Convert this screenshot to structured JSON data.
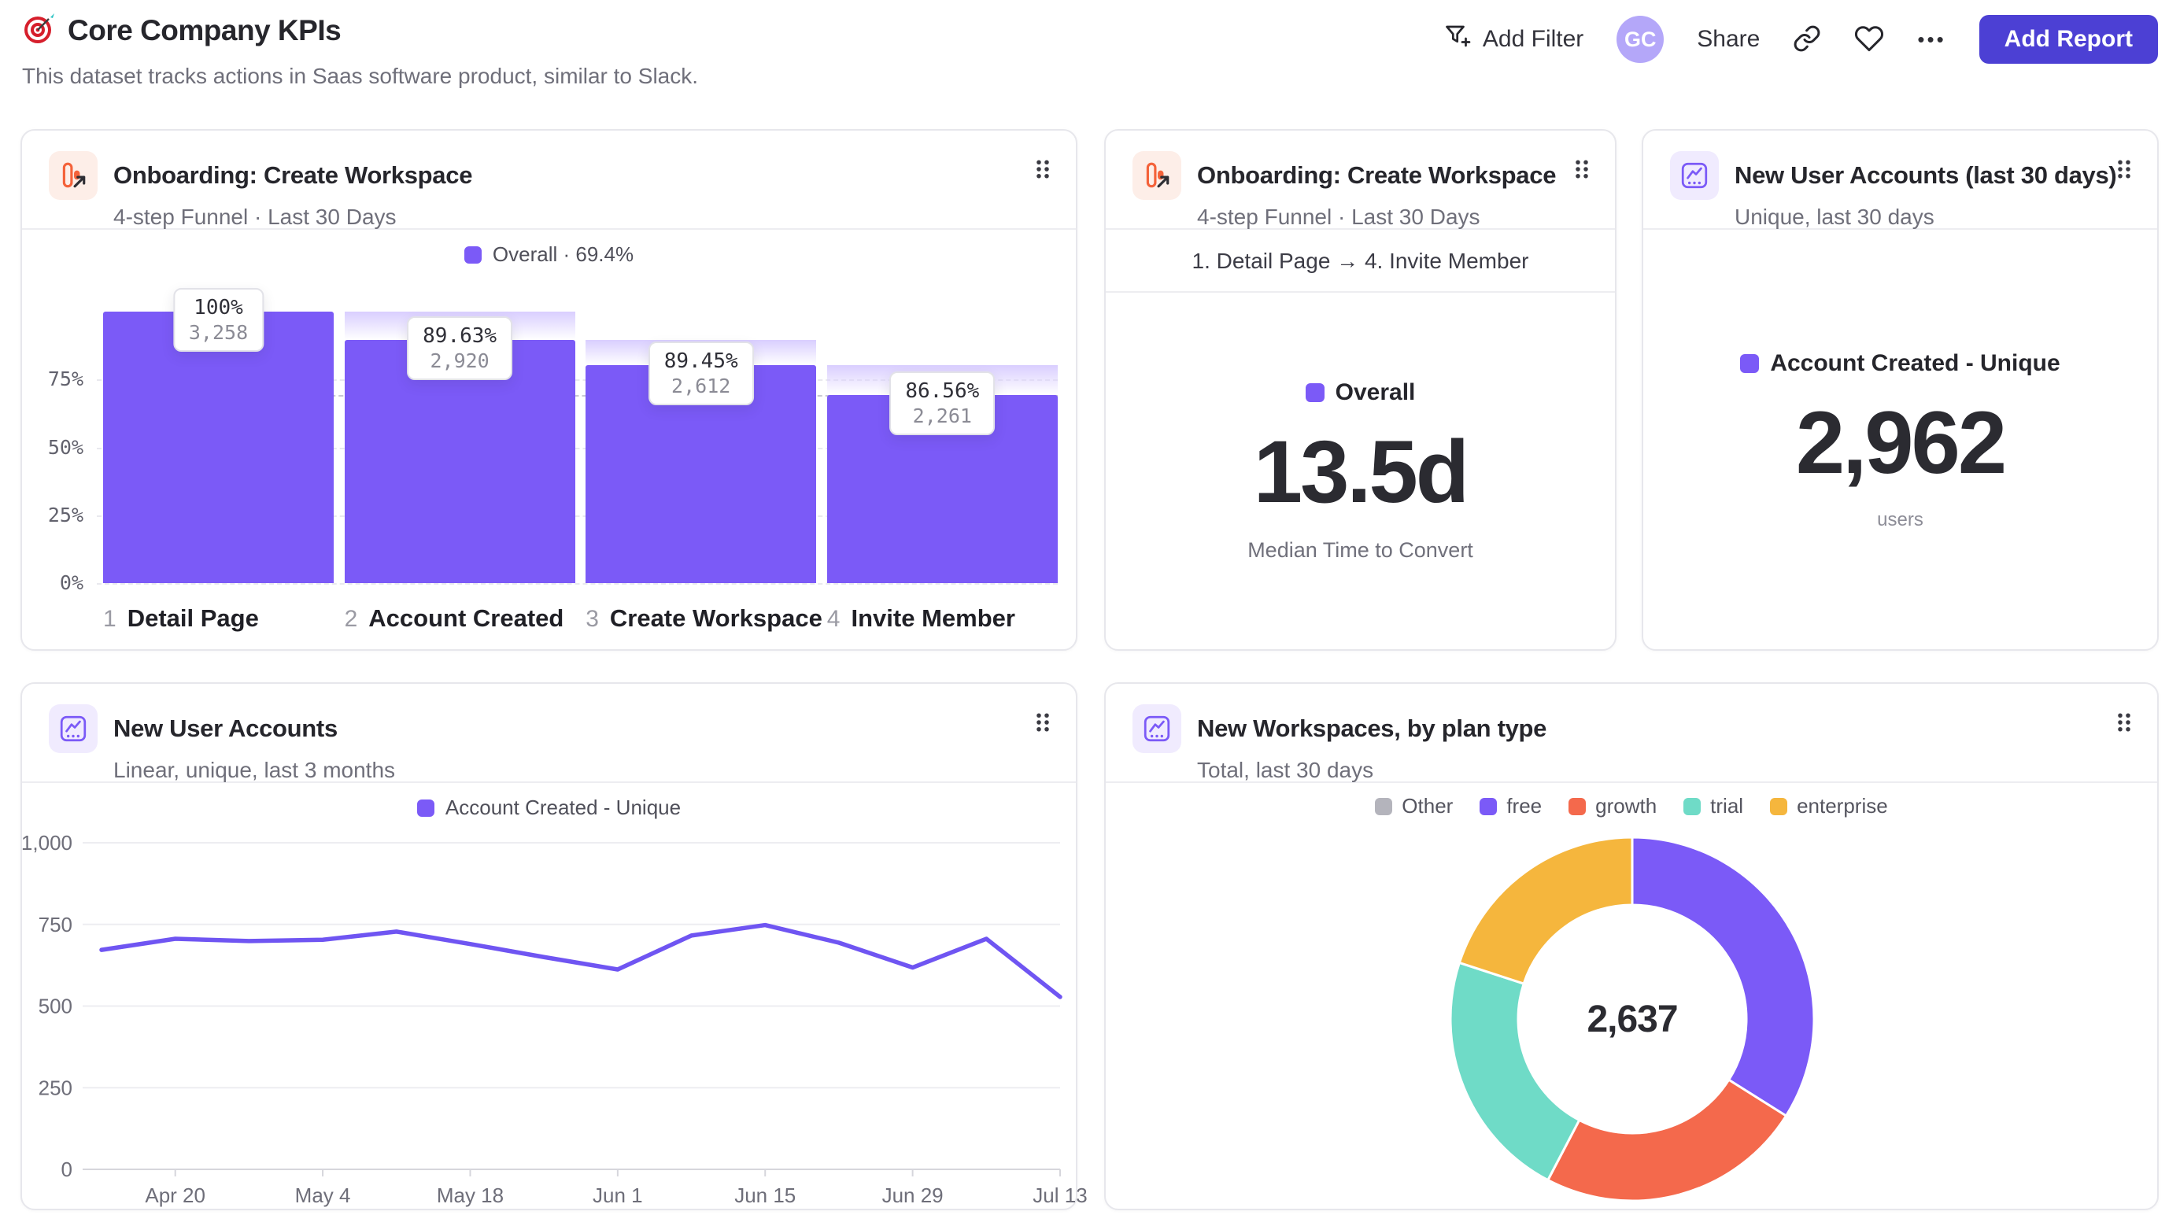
{
  "header": {
    "title": "Core Company KPIs",
    "subtitle": "This dataset tracks actions in Saas software product, similar to Slack.",
    "actions": {
      "add_filter": "Add Filter",
      "avatar_initials": "GC",
      "share": "Share",
      "more": "•••",
      "add_report": "Add Report"
    },
    "accent_color": "#4c40d4",
    "avatar_color": "#b4a7f9"
  },
  "cards": {
    "funnel": {
      "title": "Onboarding: Create Workspace",
      "subtitle": "4-step Funnel · Last 30 Days"
    },
    "time_to_convert": {
      "title": "Onboarding: Create Workspace",
      "subtitle": "4-step Funnel · Last 30 Days",
      "range": "1. Detail Page → 4. Invite Member",
      "legend": "Overall",
      "value": "13.5d",
      "caption": "Median Time to Convert"
    },
    "new_users_30d": {
      "title": "New User Accounts (last 30 days)",
      "subtitle": "Unique, last 30 days",
      "legend": "Account Created - Unique",
      "value": "2,962",
      "caption": "users"
    },
    "new_users_trend": {
      "title": "New User Accounts",
      "subtitle": "Linear, unique, last 3 months"
    },
    "workspaces_by_plan": {
      "title": "New Workspaces, by plan type",
      "subtitle": "Total, last 30 days"
    }
  },
  "chart_data": [
    {
      "type": "bar",
      "title": "Onboarding: Create Workspace funnel",
      "legend_label": "Overall · 69.4%",
      "overall_pct": 69.4,
      "bar_color": "#7b5af7",
      "y_ticks": [
        "0%",
        "25%",
        "50%",
        "75%"
      ],
      "steps": [
        {
          "num": "1",
          "label": "Detail Page",
          "conversion": "100%",
          "count": "3,258",
          "height_pct": 100.0
        },
        {
          "num": "2",
          "label": "Account Created",
          "conversion": "89.63%",
          "count": "2,920",
          "height_pct": 89.63
        },
        {
          "num": "3",
          "label": "Create Workspace",
          "conversion": "89.45%",
          "count": "2,612",
          "height_pct": 80.17
        },
        {
          "num": "4",
          "label": "Invite Member",
          "conversion": "86.56%",
          "count": "2,261",
          "height_pct": 69.4
        }
      ]
    },
    {
      "type": "line",
      "legend_label": "Account Created - Unique",
      "line_color": "#6f55f2",
      "ylim": [
        0,
        1000
      ],
      "y_ticks": [
        "0",
        "250",
        "500",
        "750",
        "1,000"
      ],
      "values": [
        672,
        706,
        699,
        703,
        728,
        690,
        650,
        612,
        716,
        748,
        694,
        618,
        706,
        528
      ],
      "x_tick_labels": [
        "Apr 20",
        "May 4",
        "May 18",
        "Jun 1",
        "Jun 15",
        "Jun 29",
        "Jul 13"
      ],
      "labeled_point_start": 1,
      "labeled_point_step": 2,
      "grid": true,
      "legend_position": "top"
    },
    {
      "type": "pie",
      "center_label": "2,637",
      "total": 2637,
      "slices": [
        {
          "label": "Other",
          "value": 0,
          "color": "#b4b4bc"
        },
        {
          "label": "free",
          "value": 895,
          "color": "#7b5af7"
        },
        {
          "label": "growth",
          "value": 626,
          "color": "#f4694c"
        },
        {
          "label": "trial",
          "value": 589,
          "color": "#6fdbc7"
        },
        {
          "label": "enterprise",
          "value": 527,
          "color": "#f5b63d"
        }
      ]
    }
  ]
}
